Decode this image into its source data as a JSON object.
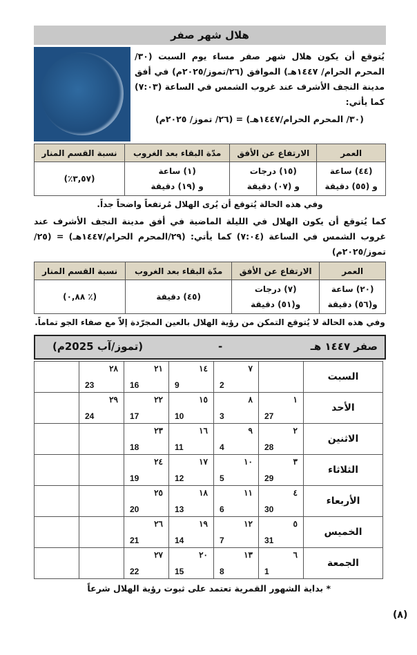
{
  "title": "هلال شهر صفر",
  "intro": "يُتوقع أن يكون هلال شهر صفر مساء يوم السبت (٣٠/المحرم الحرام/ ١٤٤٧هـ) الموافق (٢٦/تموز/٢٠٢٥م) في أفق مدينة النجف الأشرف عند غروب الشمس في الساعة (٧:٠٣) كما يأتي:",
  "equation1": "(٣٠/ المحرم الحرام/١٤٤٧هـ) = (٢٦/ تموز/ ٢٠٢٥م)",
  "table_headers": [
    "العمر",
    "الارتفاع عن الأفق",
    "مدّة البقاء بعد الغروب",
    "نسبة القسم المنار"
  ],
  "table1": {
    "age": [
      "(٤٤) ساعة",
      "و (٥٥) دقيقة"
    ],
    "altitude": [
      "(١٥) درجات",
      "و (٠٧) دقيقة"
    ],
    "duration": [
      "(١) ساعة",
      "و (١٩) دقيقة"
    ],
    "illumination": "(٣,٥٧٪)"
  },
  "note1": "وفي هذه الحالة يُتوقع أن يُرى الهلال مُرتفعاً واضحاً جداً.",
  "intro2": "كما يُتوقع أن يكون الهلال في الليلة الماضية في أفق مدينة النجف الأشرف عند غروب الشمس في الساعة (٧:٠٤) كما يأتي: (٢٩/المحرم الحرام/١٤٤٧هـ) = (٢٥/ تموز/٢٠٢٥م)",
  "table2": {
    "age": [
      "(٢٠) ساعة",
      "و(٥٦) دقيقة"
    ],
    "altitude": [
      "(٧) درجات",
      "و(٥١) دقيقة"
    ],
    "duration": "(٤٥) دقيقة",
    "illumination": "(٪ ٠,٨٨)"
  },
  "note2": "وفي هذه الحالة لا يُتوقع التمكن من رؤية الهلال بالعين المجرّدة إلاّ مع صفاء الجو تماماً.",
  "calendar": {
    "hijri_month": "صفر ١٤٤٧ هـ",
    "separator": "-",
    "gregorian_month": "(تموز/آب 2025م)",
    "days": [
      "السبت",
      "الأحد",
      "الاثنين",
      "الثلاثاء",
      "الأربعاء",
      "الخميس",
      "الجمعة"
    ],
    "weeks": [
      [
        null,
        [
          "١",
          "27"
        ],
        [
          "٢",
          "28"
        ],
        [
          "٣",
          "29"
        ],
        [
          "٤",
          "30"
        ],
        [
          "٥",
          "31"
        ],
        [
          "٦",
          "1"
        ]
      ],
      [
        [
          "٧",
          "2"
        ],
        [
          "٨",
          "3"
        ],
        [
          "٩",
          "4"
        ],
        [
          "١٠",
          "5"
        ],
        [
          "١١",
          "6"
        ],
        [
          "١٢",
          "7"
        ],
        [
          "١٣",
          "8"
        ]
      ],
      [
        [
          "١٤",
          "9"
        ],
        [
          "١٥",
          "10"
        ],
        [
          "١٦",
          "11"
        ],
        [
          "١٧",
          "12"
        ],
        [
          "١٨",
          "13"
        ],
        [
          "١٩",
          "14"
        ],
        [
          "٢٠",
          "15"
        ]
      ],
      [
        [
          "٢١",
          "16"
        ],
        [
          "٢٢",
          "17"
        ],
        [
          "٢٣",
          "18"
        ],
        [
          "٢٤",
          "19"
        ],
        [
          "٢٥",
          "20"
        ],
        [
          "٢٦",
          "21"
        ],
        [
          "٢٧",
          "22"
        ]
      ],
      [
        [
          "٢٨",
          "23"
        ],
        [
          "٢٩",
          "24"
        ],
        null,
        null,
        null,
        null,
        null
      ],
      [
        null,
        null,
        null,
        null,
        null,
        null,
        null
      ]
    ]
  },
  "footnote": "*   بداية الشهور القمرية تعتمد على ثبوت رؤية الهلال شرعاً",
  "page_number": "(٨)"
}
